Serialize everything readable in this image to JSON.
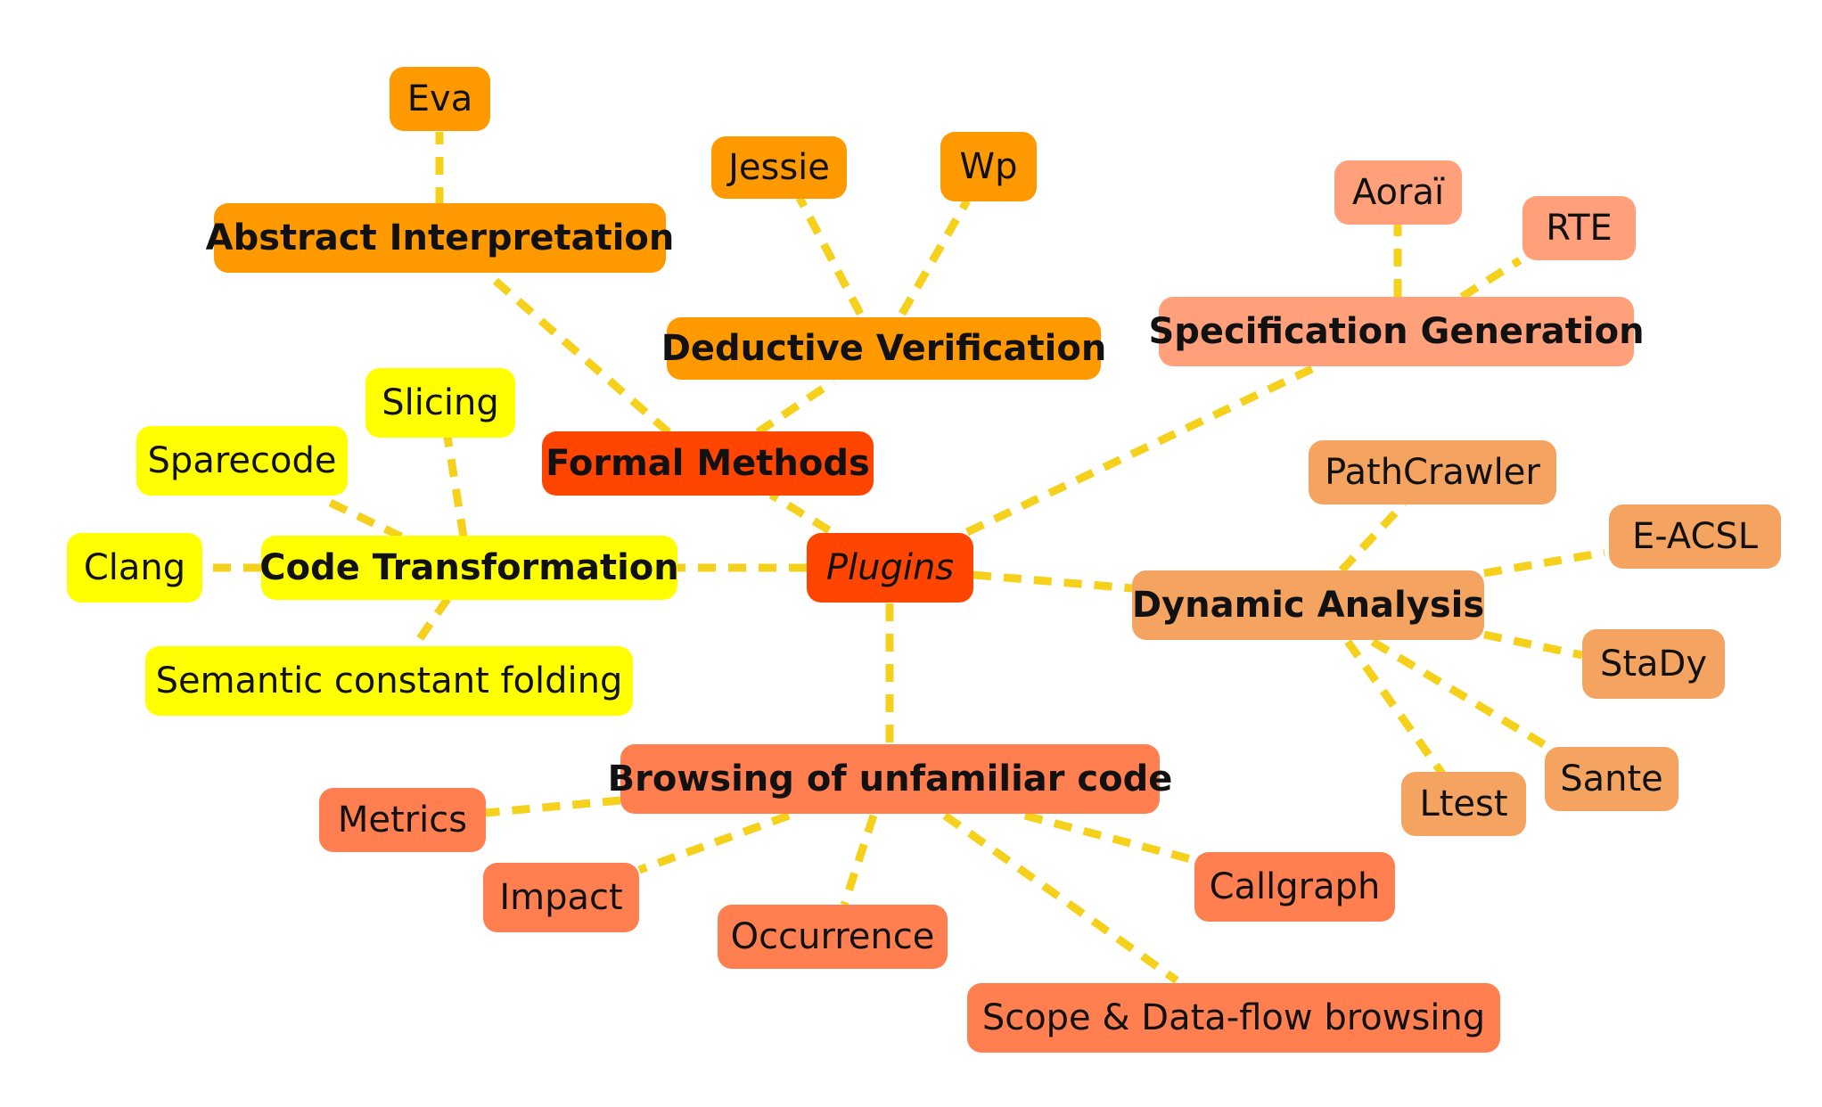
{
  "colors": {
    "connector": "#F5D11C",
    "root": "#FF4500",
    "formal_methods": "#FF4500",
    "formal_subcategory": "#FF9900",
    "formal_leaf": "#FF9900",
    "code_transformation": "#FFFF00",
    "specification_generation": "#FFA07A",
    "dynamic_analysis": "#F4A460",
    "browsing": "#FF7F50"
  },
  "diagram": {
    "root": "Plugins",
    "formal_methods": {
      "label": "Formal Methods",
      "abstract_interpretation": {
        "label": "Abstract Interpretation",
        "plugins": [
          "Eva"
        ]
      },
      "deductive_verification": {
        "label": "Deductive Verification",
        "plugins": [
          "Jessie",
          "Wp"
        ]
      }
    },
    "code_transformation": {
      "label": "Code Transformation",
      "plugins": [
        "Slicing",
        "Sparecode",
        "Clang",
        "Semantic constant folding"
      ]
    },
    "specification_generation": {
      "label": "Specification Generation",
      "plugins": [
        "Aoraï",
        "RTE"
      ]
    },
    "dynamic_analysis": {
      "label": "Dynamic Analysis",
      "plugins": [
        "PathCrawler",
        "E-ACSL",
        "StaDy",
        "Sante",
        "Ltest"
      ]
    },
    "browsing": {
      "label": "Browsing of unfamiliar code",
      "plugins": [
        "Metrics",
        "Impact",
        "Occurrence",
        "Callgraph",
        "Scope & Data-flow browsing"
      ]
    }
  }
}
